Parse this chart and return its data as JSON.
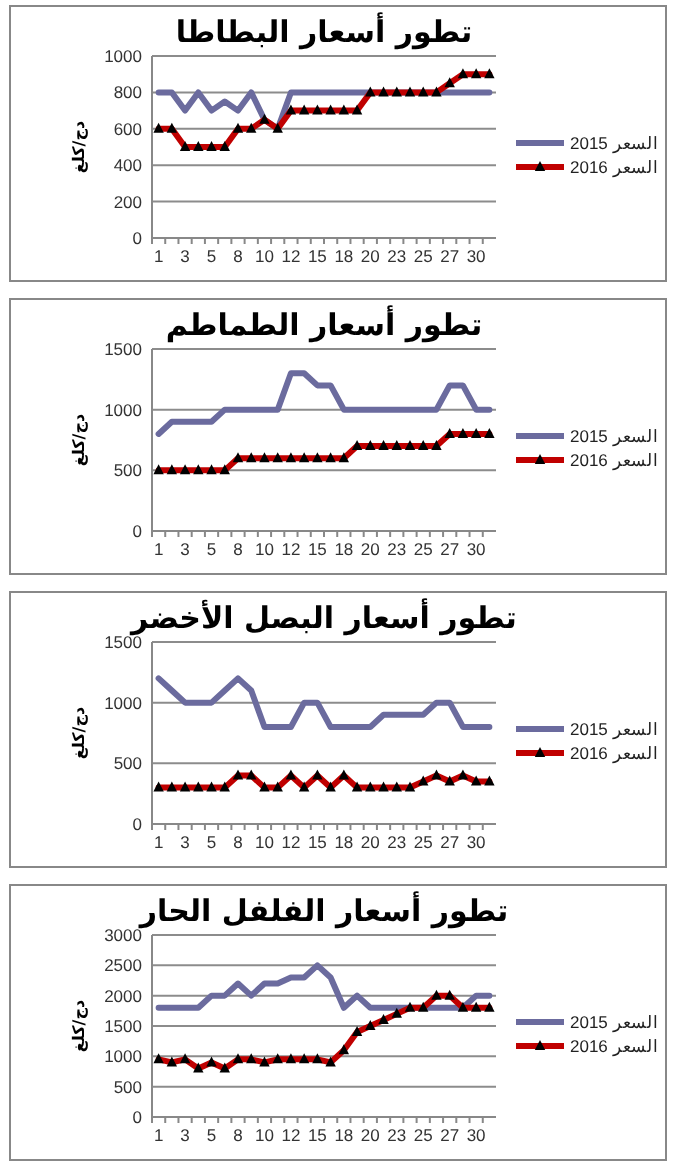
{
  "chart_data": [
    {
      "type": "line",
      "title": "تطور أسعار البطاطا",
      "ylabel": "دج/كلغ",
      "categories": [
        "1",
        null,
        "3",
        null,
        "5",
        null,
        "8",
        null,
        "10",
        null,
        "12",
        null,
        "15",
        null,
        "18",
        null,
        "20",
        null,
        "23",
        null,
        "25",
        null,
        "27",
        null,
        "30",
        null
      ],
      "ylim": [
        0,
        1000
      ],
      "yticks": [
        0,
        200,
        400,
        600,
        800,
        1000
      ],
      "grid": "y",
      "legend": "right",
      "series": [
        {
          "name": "السعر 2015",
          "color": "#6b6b9e",
          "marker": "none",
          "values": [
            800,
            800,
            700,
            800,
            700,
            750,
            700,
            800,
            650,
            600,
            800,
            800,
            800,
            800,
            800,
            800,
            800,
            800,
            800,
            800,
            800,
            800,
            800,
            800,
            800,
            800
          ]
        },
        {
          "name": "السعر 2016",
          "color": "#c00000",
          "marker": "triangle",
          "values": [
            600,
            600,
            500,
            500,
            500,
            500,
            600,
            600,
            650,
            600,
            700,
            700,
            700,
            700,
            700,
            700,
            800,
            800,
            800,
            800,
            800,
            800,
            850,
            900,
            900,
            900
          ]
        }
      ]
    },
    {
      "type": "line",
      "title": "تطور أسعار الطماطم",
      "ylabel": "دج/كلغ",
      "categories": [
        "1",
        null,
        "3",
        null,
        "5",
        null,
        "8",
        null,
        "10",
        null,
        "12",
        null,
        "15",
        null,
        "18",
        null,
        "20",
        null,
        "23",
        null,
        "25",
        null,
        "27",
        null,
        "30",
        null
      ],
      "ylim": [
        0,
        1500
      ],
      "yticks": [
        0,
        500,
        1000,
        1500
      ],
      "grid": "y",
      "legend": "right",
      "series": [
        {
          "name": "السعر 2015",
          "color": "#6b6b9e",
          "marker": "none",
          "values": [
            800,
            900,
            900,
            900,
            900,
            1000,
            1000,
            1000,
            1000,
            1000,
            1300,
            1300,
            1200,
            1200,
            1000,
            1000,
            1000,
            1000,
            1000,
            1000,
            1000,
            1000,
            1200,
            1200,
            1000,
            1000
          ]
        },
        {
          "name": "السعر 2016",
          "color": "#c00000",
          "marker": "triangle",
          "values": [
            500,
            500,
            500,
            500,
            500,
            500,
            600,
            600,
            600,
            600,
            600,
            600,
            600,
            600,
            600,
            700,
            700,
            700,
            700,
            700,
            700,
            700,
            800,
            800,
            800,
            800
          ]
        }
      ]
    },
    {
      "type": "line",
      "title": "تطور أسعار البصل الأخضر",
      "ylabel": "دج/كلغ",
      "categories": [
        "1",
        null,
        "3",
        null,
        "5",
        null,
        "8",
        null,
        "10",
        null,
        "12",
        null,
        "15",
        null,
        "18",
        null,
        "20",
        null,
        "23",
        null,
        "25",
        null,
        "27",
        null,
        "30",
        null
      ],
      "ylim": [
        0,
        1500
      ],
      "yticks": [
        0,
        500,
        1000,
        1500
      ],
      "grid": "y",
      "legend": "right",
      "series": [
        {
          "name": "السعر 2015",
          "color": "#6b6b9e",
          "marker": "none",
          "values": [
            1200,
            1100,
            1000,
            1000,
            1000,
            1100,
            1200,
            1100,
            800,
            800,
            800,
            1000,
            1000,
            800,
            800,
            800,
            800,
            900,
            900,
            900,
            900,
            1000,
            1000,
            800,
            800,
            800
          ]
        },
        {
          "name": "السعر 2016",
          "color": "#c00000",
          "marker": "triangle",
          "values": [
            300,
            300,
            300,
            300,
            300,
            300,
            400,
            400,
            300,
            300,
            400,
            300,
            400,
            300,
            400,
            300,
            300,
            300,
            300,
            300,
            350,
            400,
            350,
            400,
            350,
            350
          ]
        }
      ]
    },
    {
      "type": "line",
      "title": "تطور أسعار الفلفل الحار",
      "ylabel": "دج/كلغ",
      "categories": [
        "1",
        null,
        "3",
        null,
        "5",
        null,
        "8",
        null,
        "10",
        null,
        "12",
        null,
        "15",
        null,
        "18",
        null,
        "20",
        null,
        "23",
        null,
        "25",
        null,
        "27",
        null,
        "30",
        null
      ],
      "ylim": [
        0,
        3000
      ],
      "yticks": [
        0,
        500,
        1000,
        1500,
        2000,
        2500,
        3000
      ],
      "grid": "y",
      "legend": "right",
      "series": [
        {
          "name": "السعر 2015",
          "color": "#6b6b9e",
          "marker": "none",
          "values": [
            1800,
            1800,
            1800,
            1800,
            2000,
            2000,
            2200,
            2000,
            2200,
            2200,
            2300,
            2300,
            2500,
            2300,
            1800,
            2000,
            1800,
            1800,
            1800,
            1800,
            1800,
            1800,
            1800,
            1800,
            2000,
            2000
          ]
        },
        {
          "name": "السعر 2016",
          "color": "#c00000",
          "marker": "triangle",
          "values": [
            950,
            900,
            950,
            800,
            900,
            800,
            950,
            950,
            900,
            950,
            950,
            950,
            950,
            900,
            1100,
            1400,
            1500,
            1600,
            1700,
            1800,
            1800,
            2000,
            2000,
            1800,
            1800,
            1800
          ]
        }
      ]
    }
  ]
}
